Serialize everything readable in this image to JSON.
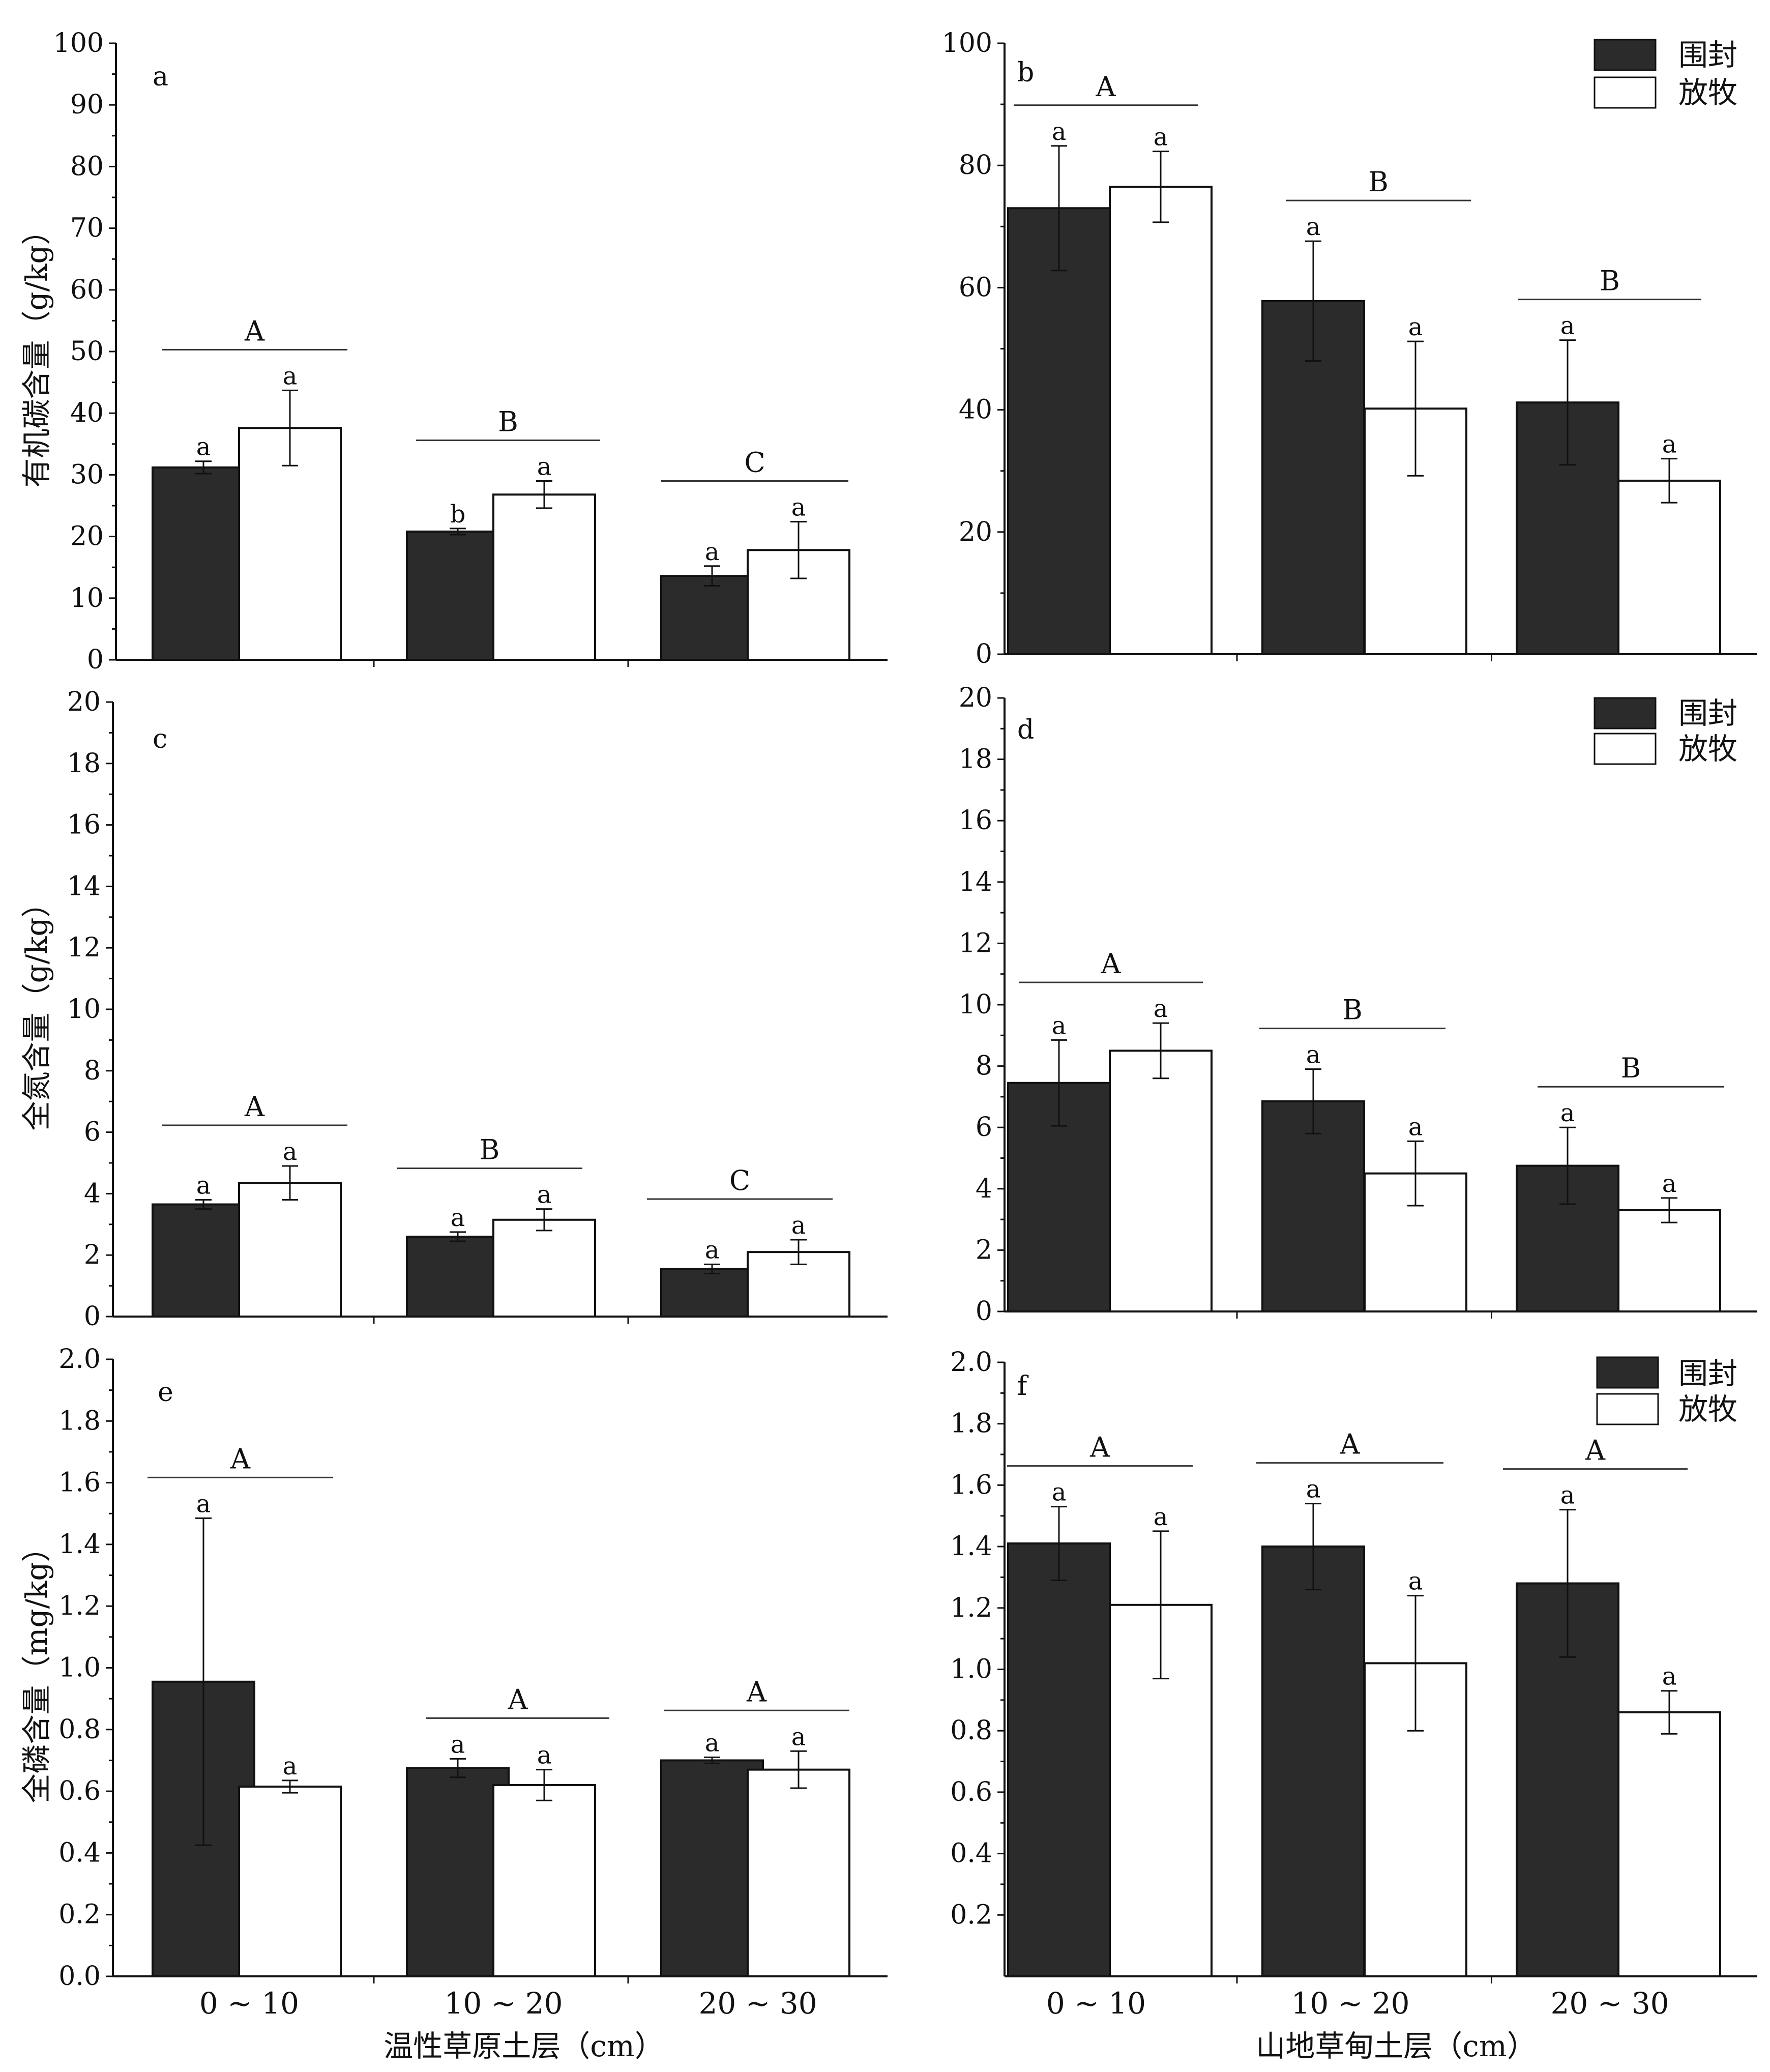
{
  "legend": [
    "围封",
    "放牧"
  ],
  "series_colors": {
    "围封": "#2b2b2b",
    "放牧": "#ffffff"
  },
  "categories": [
    "0 ~ 10",
    "10 ~ 20",
    "20 ~ 30"
  ],
  "xlabels": {
    "left": "温性草原土层（cm）",
    "right": "山地草甸土层（cm）"
  },
  "chart_data": [
    {
      "type": "bar",
      "panel": "a",
      "ylabel": "有机碳含量（g/kg）",
      "ylim": [
        0,
        100
      ],
      "yticks": [
        0,
        10,
        20,
        30,
        40,
        50,
        60,
        70,
        80,
        90,
        100
      ],
      "tick_decimals": 0,
      "categories": [
        "0 ~ 10",
        "10 ~ 20",
        "20 ~ 30"
      ],
      "series": [
        {
          "name": "围封",
          "values": [
            31.2,
            20.8,
            13.6
          ],
          "errors": [
            1.0,
            0.5,
            1.6
          ],
          "letters": [
            "a",
            "b",
            "a"
          ]
        },
        {
          "name": "放牧",
          "values": [
            37.6,
            26.8,
            17.8
          ],
          "errors": [
            6.1,
            2.2,
            4.6
          ],
          "letters": [
            "a",
            "a",
            "a"
          ]
        }
      ],
      "group_letters": [
        "A",
        "B",
        "C"
      ]
    },
    {
      "type": "bar",
      "panel": "b",
      "ylabel": "",
      "ylim": [
        0,
        100
      ],
      "yticks": [
        0,
        20,
        40,
        60,
        80,
        100
      ],
      "tick_decimals": 0,
      "categories": [
        "0 ~ 10",
        "10 ~ 20",
        "20 ~ 30"
      ],
      "series": [
        {
          "name": "围封",
          "values": [
            73.0,
            57.8,
            41.2
          ],
          "errors": [
            10.2,
            9.8,
            10.2
          ],
          "letters": [
            "a",
            "a",
            "a"
          ]
        },
        {
          "name": "放牧",
          "values": [
            76.5,
            40.2,
            28.4
          ],
          "errors": [
            5.8,
            11.0,
            3.6
          ],
          "letters": [
            "a",
            "a",
            "a"
          ]
        }
      ],
      "group_letters": [
        "A",
        "B",
        "B"
      ]
    },
    {
      "type": "bar",
      "panel": "c",
      "ylabel": "全氮含量（g/kg）",
      "ylim": [
        0,
        20
      ],
      "yticks": [
        0,
        2,
        4,
        6,
        8,
        10,
        12,
        14,
        16,
        18,
        20
      ],
      "tick_decimals": 0,
      "categories": [
        "0 ~ 10",
        "10 ~ 20",
        "20 ~ 30"
      ],
      "series": [
        {
          "name": "围封",
          "values": [
            3.65,
            2.6,
            1.55
          ],
          "errors": [
            0.15,
            0.15,
            0.15
          ],
          "letters": [
            "a",
            "a",
            "a"
          ]
        },
        {
          "name": "放牧",
          "values": [
            4.35,
            3.15,
            2.1
          ],
          "errors": [
            0.55,
            0.35,
            0.4
          ],
          "letters": [
            "a",
            "a",
            "a"
          ]
        }
      ],
      "group_letters": [
        "A",
        "B",
        "C"
      ]
    },
    {
      "type": "bar",
      "panel": "d",
      "ylabel": "",
      "ylim": [
        0,
        20
      ],
      "yticks": [
        0,
        2,
        4,
        6,
        8,
        10,
        12,
        14,
        16,
        18,
        20
      ],
      "tick_decimals": 0,
      "categories": [
        "0 ~ 10",
        "10 ~ 20",
        "20 ~ 30"
      ],
      "series": [
        {
          "name": "围封",
          "values": [
            7.45,
            6.85,
            4.75
          ],
          "errors": [
            1.4,
            1.05,
            1.25
          ],
          "letters": [
            "a",
            "a",
            "a"
          ]
        },
        {
          "name": "放牧",
          "values": [
            8.5,
            4.5,
            3.3
          ],
          "errors": [
            0.9,
            1.05,
            0.4
          ],
          "letters": [
            "a",
            "a",
            "a"
          ]
        }
      ],
      "group_letters": [
        "A",
        "B",
        "B"
      ]
    },
    {
      "type": "bar",
      "panel": "e",
      "ylabel": "全磷含量（mg/kg）",
      "ylim": [
        0,
        2.0
      ],
      "yticks": [
        0,
        0.2,
        0.4,
        0.6,
        0.8,
        1.0,
        1.2,
        1.4,
        1.6,
        1.8,
        2.0
      ],
      "tick_decimals": 1,
      "categories": [
        "0 ~ 10",
        "10 ~ 20",
        "20 ~ 30"
      ],
      "series": [
        {
          "name": "围封",
          "values": [
            0.955,
            0.675,
            0.7
          ],
          "errors": [
            0.53,
            0.03,
            0.01
          ],
          "letters": [
            "a",
            "a",
            "a"
          ]
        },
        {
          "name": "放牧",
          "values": [
            0.615,
            0.62,
            0.67
          ],
          "errors": [
            0.02,
            0.05,
            0.06
          ],
          "letters": [
            "a",
            "a",
            "a"
          ]
        }
      ],
      "group_letters": [
        "A",
        "A",
        "A"
      ]
    },
    {
      "type": "bar",
      "panel": "f",
      "ylabel": "",
      "ylim": [
        0,
        2.0
      ],
      "yticks": [
        0.2,
        0.4,
        0.6,
        0.8,
        1.0,
        1.2,
        1.4,
        1.6,
        1.8,
        2.0
      ],
      "tick_decimals": 1,
      "categories": [
        "0 ~ 10",
        "10 ~ 20",
        "20 ~ 30"
      ],
      "series": [
        {
          "name": "围封",
          "values": [
            1.41,
            1.4,
            1.28
          ],
          "errors": [
            0.12,
            0.14,
            0.24
          ],
          "letters": [
            "a",
            "a",
            "a"
          ]
        },
        {
          "name": "放牧",
          "values": [
            1.21,
            1.02,
            0.86
          ],
          "errors": [
            0.24,
            0.22,
            0.07
          ],
          "letters": [
            "a",
            "a",
            "a"
          ]
        }
      ],
      "group_letters": [
        "A",
        "A",
        "A"
      ]
    }
  ]
}
